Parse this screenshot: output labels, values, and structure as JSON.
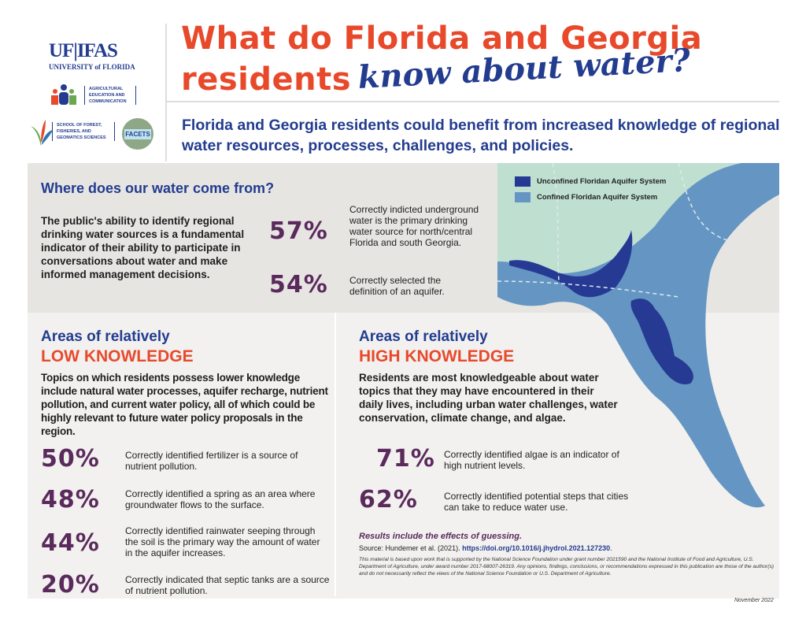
{
  "logos": {
    "uf_ifas": "UF|IFAS",
    "university": "UNIVERSITY of FLORIDA",
    "aec": "AGRICULTURAL EDUCATION AND COMMUNICATION",
    "sffgs": "SCHOOL OF FOREST, FISHERIES, AND GEOMATICS SCIENCES",
    "facets": "FACETS"
  },
  "header": {
    "title_line1": "What do Florida and Georgia",
    "title_line2": "residents",
    "title_script": "know about water?",
    "subtitle": "Florida and Georgia residents could benefit from increased knowledge of regional water resources, processes, challenges, and policies."
  },
  "source_section": {
    "heading": "Where does our water come from?",
    "body": "The public's ability to identify regional drinking water sources is a fundamental indicator of their ability to participate in conversations about water and make informed management decisions.",
    "stats": [
      {
        "pct": "57%",
        "text": "Correctly indicted underground water is the primary drinking water source for north/central Florida and south Georgia."
      },
      {
        "pct": "54%",
        "text": "Correctly selected the definition of an aquifer."
      }
    ]
  },
  "map": {
    "legend": [
      {
        "label": "Unconfined Floridan Aquifer System",
        "color": "#263a94"
      },
      {
        "label": "Confined Floridan Aquifer System",
        "color": "#6596c3"
      }
    ],
    "land_color": "#bfe0d1"
  },
  "low": {
    "heading1": "Areas of relatively",
    "heading2": "LOW KNOWLEDGE",
    "body": "Topics on which residents possess lower knowledge include natural water processes, aquifer recharge, nutrient pollution, and current water policy, all of which could be highly relevant to future water policy proposals in the region.",
    "stats": [
      {
        "pct": "50%",
        "text": "Correctly identified fertilizer is a source of nutrient pollution."
      },
      {
        "pct": "48%",
        "text": "Correctly identified a spring as an area where groundwater flows to the surface."
      },
      {
        "pct": "44%",
        "text": "Correctly identified rainwater seeping through the soil is the primary way the amount of water in the aquifer increases."
      },
      {
        "pct": "20%",
        "text": "Correctly indicated that septic tanks are a source of nutrient pollution."
      }
    ]
  },
  "high": {
    "heading1": "Areas of relatively",
    "heading2": "HIGH KNOWLEDGE",
    "body": "Residents are most knowledgeable about water topics that they may have encountered in their daily lives, including urban water challenges, water conservation, climate change, and algae.",
    "stats": [
      {
        "pct": "71%",
        "text": "Correctly identified algae is an indicator of high nutrient levels."
      },
      {
        "pct": "62%",
        "text": "Correctly identified potential steps that cities can take to reduce water use."
      }
    ]
  },
  "footer": {
    "guessing": "Results include the effects of guessing.",
    "source_prefix": "Source: Hundemer et al. (2021).",
    "source_link": "https://doi.org/10.1016/j.jhydrol.2021.127230",
    "source_suffix": ".",
    "funding": "This material is based upon work that is supported by the National Science Foundation under grant number 2021590 and the National Institute of Food and Agriculture, U.S. Department of Agriculture, under award number 2017-68007-26319. Any opinions, findings, conclusions, or recommendations expressed in this publication are those of the author(s) and do not necessarily reflect the views of the National Science Foundation or U.S. Department of Agriculture.",
    "date": "November 2022"
  }
}
